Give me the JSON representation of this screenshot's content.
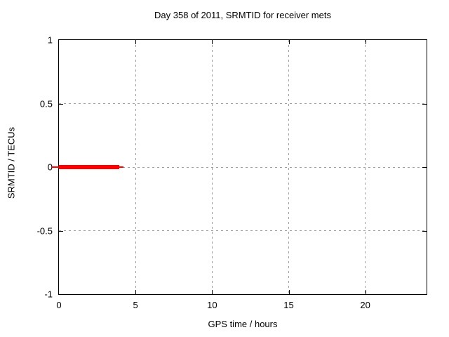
{
  "chart_data": {
    "type": "line",
    "title": "Day 358 of 2011, SRMTID for receiver mets",
    "xlabel": "GPS time / hours",
    "ylabel": "SRMTID / TECUs",
    "xlim": [
      0,
      24
    ],
    "ylim": [
      -1,
      1
    ],
    "grid": true,
    "legend": false,
    "xticks": [
      {
        "value": 0,
        "label": "0"
      },
      {
        "value": 5,
        "label": "5"
      },
      {
        "value": 10,
        "label": "10"
      },
      {
        "value": 15,
        "label": "15"
      },
      {
        "value": 20,
        "label": "20"
      }
    ],
    "yticks": [
      {
        "value": -1,
        "label": "-1"
      },
      {
        "value": -0.5,
        "label": "-0.5"
      },
      {
        "value": 0,
        "label": "0"
      },
      {
        "value": 0.5,
        "label": "0.5"
      },
      {
        "value": 1,
        "label": "1"
      }
    ],
    "series": [
      {
        "name": "SRMTID",
        "color": "#ff0000",
        "y_value": 0,
        "x_start": 0,
        "x_end": 4.0,
        "segments": [
          {
            "x0": -0.5,
            "x1": 0.0,
            "thickness": 2
          },
          {
            "x0": 0.0,
            "x1": 3.95,
            "thickness": 6
          },
          {
            "x0": 3.95,
            "x1": 4.2,
            "thickness": 2
          }
        ]
      }
    ],
    "colors": {
      "background": "#ffffff",
      "border": "#000000",
      "grid": "#a0a0a0",
      "text": "#000000",
      "series_red": "#ff0000"
    }
  }
}
